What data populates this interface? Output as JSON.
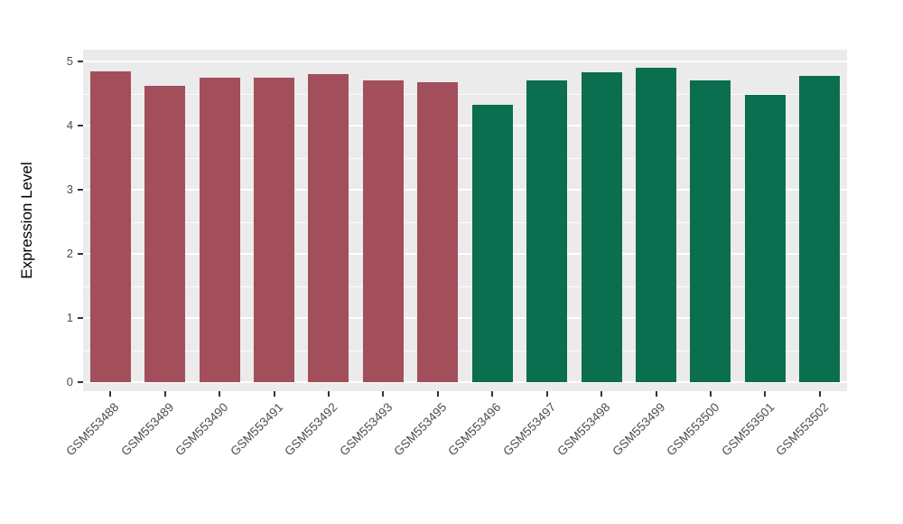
{
  "chart_data": {
    "type": "bar",
    "title": "",
    "xlabel": "",
    "ylabel": "Expression Level",
    "ylim": [
      0,
      5
    ],
    "yticks": [
      0,
      1,
      2,
      3,
      4,
      5
    ],
    "minor_ticks": [
      0.5,
      1.5,
      2.5,
      3.5,
      4.5
    ],
    "grid": "on",
    "legend_position": "none",
    "panel_bg": "#EBEBEB",
    "grid_color": "#FFFFFF",
    "categories": [
      "GSM553488",
      "GSM553489",
      "GSM553490",
      "GSM553491",
      "GSM553492",
      "GSM553493",
      "GSM553495",
      "GSM553496",
      "GSM553497",
      "GSM553498",
      "GSM553499",
      "GSM553500",
      "GSM553501",
      "GSM553502"
    ],
    "values": [
      4.85,
      4.62,
      4.75,
      4.75,
      4.8,
      4.7,
      4.67,
      4.32,
      4.7,
      4.83,
      4.9,
      4.7,
      4.48,
      4.78
    ],
    "bar_groups": [
      0,
      0,
      0,
      0,
      0,
      0,
      0,
      1,
      1,
      1,
      1,
      1,
      1,
      1
    ],
    "group_colors": [
      "#A24F5B",
      "#0B6E4F"
    ]
  }
}
